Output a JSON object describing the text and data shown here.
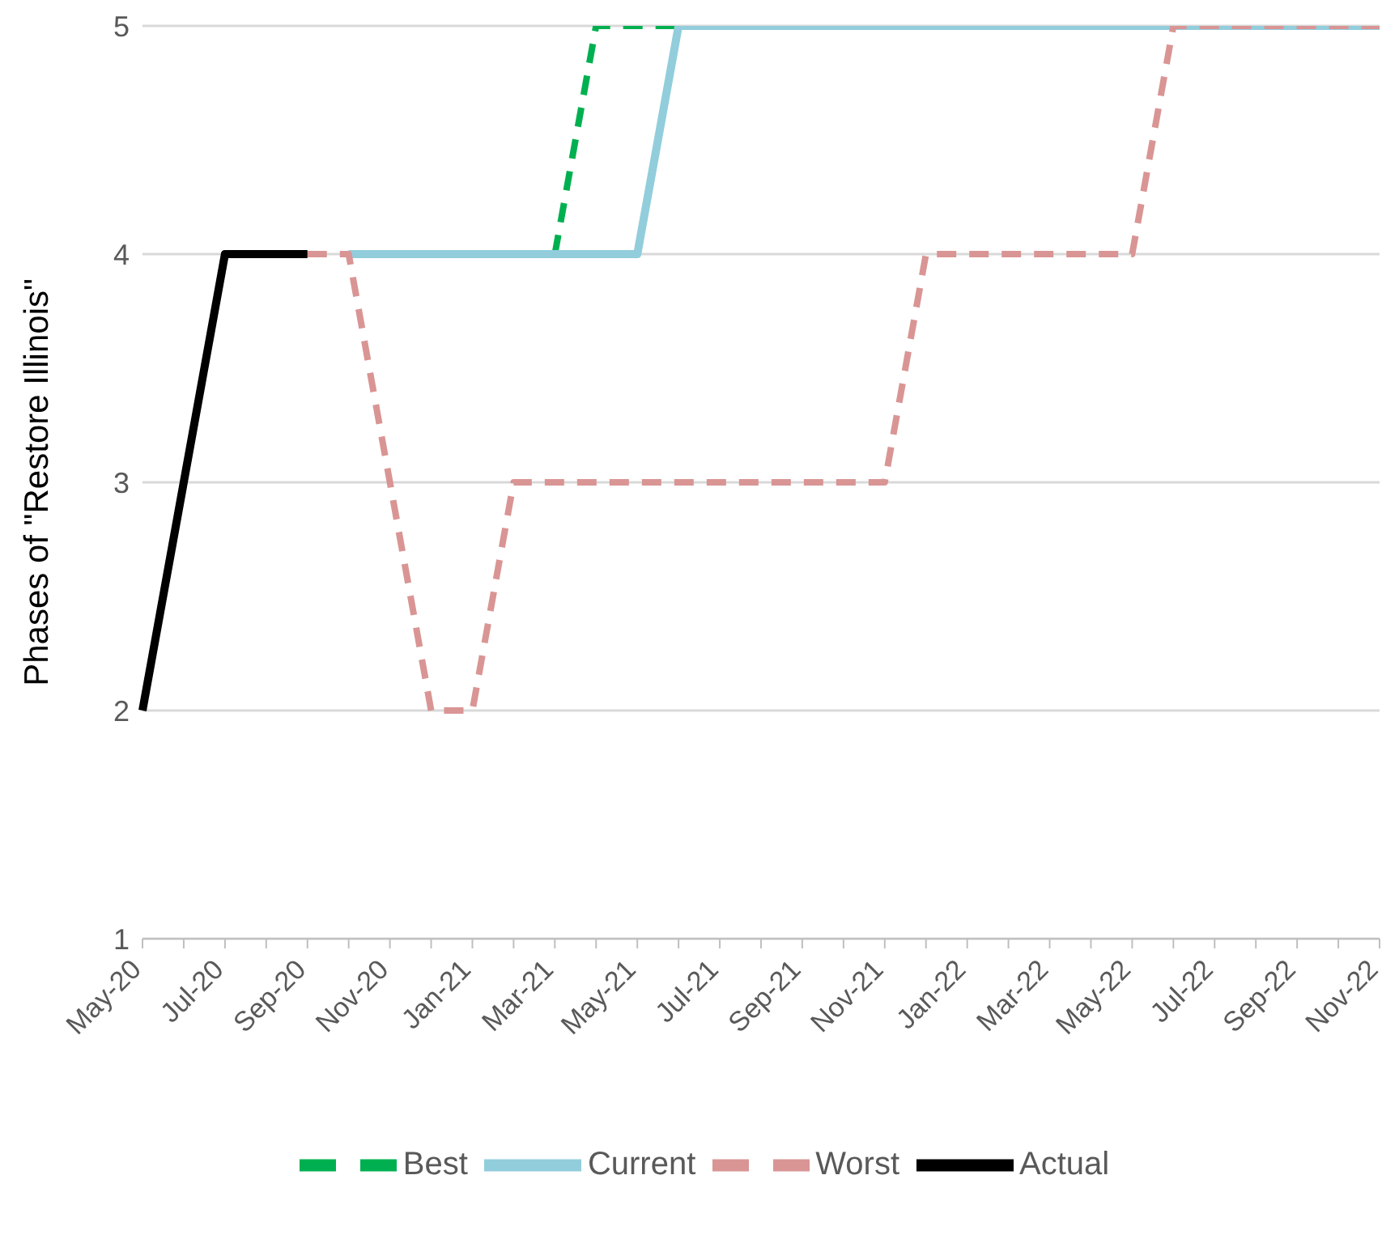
{
  "chart_data": {
    "type": "line",
    "ylabel": "Phases of \"Restore Illinois\"",
    "categories": [
      "May-20",
      null,
      "Jul-20",
      null,
      "Sep-20",
      null,
      "Nov-20",
      null,
      "Jan-21",
      null,
      "Mar-21",
      null,
      "May-21",
      null,
      "Jul-21",
      null,
      "Sep-21",
      null,
      "Nov-21",
      null,
      "Jan-22",
      null,
      "Mar-22",
      null,
      "May-22",
      null,
      "Jul-22",
      null,
      "Sep-22",
      null,
      "Nov-22"
    ],
    "series": [
      {
        "name": "Best",
        "color": "#00b050",
        "line_style": "dashed",
        "values": [
          null,
          null,
          null,
          null,
          null,
          null,
          null,
          null,
          null,
          null,
          4,
          5,
          5,
          5,
          null,
          null,
          null,
          null,
          null,
          null,
          null,
          null,
          null,
          null,
          null,
          null,
          null,
          null,
          null,
          null,
          null
        ]
      },
      {
        "name": "Current",
        "color": "#92cddc",
        "line_style": "solid",
        "values": [
          null,
          null,
          null,
          null,
          null,
          4,
          4,
          4,
          4,
          4,
          4,
          4,
          4,
          5,
          5,
          5,
          5,
          5,
          5,
          5,
          5,
          5,
          5,
          5,
          5,
          5,
          5,
          5,
          5,
          5,
          5
        ]
      },
      {
        "name": "Worst",
        "color": "#d99594",
        "line_style": "dashed",
        "values": [
          null,
          null,
          null,
          null,
          4,
          4,
          3,
          2,
          2,
          3,
          3,
          3,
          3,
          3,
          3,
          3,
          3,
          3,
          3,
          4,
          4,
          4,
          4,
          4,
          4,
          5,
          5,
          5,
          5,
          5,
          5
        ]
      },
      {
        "name": "Actual",
        "color": "#000000",
        "line_style": "solid",
        "values": [
          2,
          3,
          4,
          4,
          4,
          null,
          null,
          null,
          null,
          null,
          null,
          null,
          null,
          null,
          null,
          null,
          null,
          null,
          null,
          null,
          null,
          null,
          null,
          null,
          null,
          null,
          null,
          null,
          null,
          null,
          null
        ]
      }
    ],
    "ylim": [
      1,
      5
    ],
    "yticks": [
      1,
      2,
      3,
      4,
      5
    ],
    "grid": "y",
    "legend": "bottom",
    "marker": "none"
  }
}
